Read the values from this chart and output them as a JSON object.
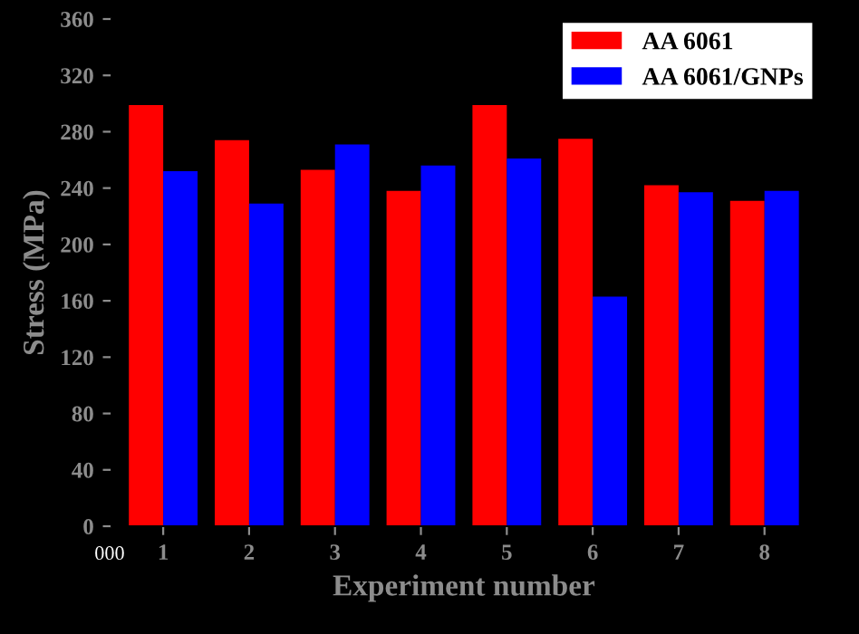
{
  "chart_data": {
    "type": "bar",
    "xlabel": "Experiment number",
    "ylabel": "Stress (MPa)",
    "categories": [
      "1",
      "2",
      "3",
      "4",
      "5",
      "6",
      "7",
      "8"
    ],
    "series": [
      {
        "name": "AA 6061",
        "color": "#ff0000",
        "values": [
          299,
          274,
          253,
          238,
          299,
          275,
          242,
          231
        ]
      },
      {
        "name": "AA 6061/GNPs",
        "color": "#0000ff",
        "values": [
          252,
          229,
          271,
          256,
          261,
          163,
          237,
          238
        ]
      }
    ],
    "ylim": [
      0,
      360
    ],
    "yticks": [
      0,
      40,
      80,
      120,
      160,
      200,
      240,
      280,
      320,
      360
    ],
    "legend": "top right",
    "grid": false,
    "annotations": [
      "000"
    ]
  }
}
